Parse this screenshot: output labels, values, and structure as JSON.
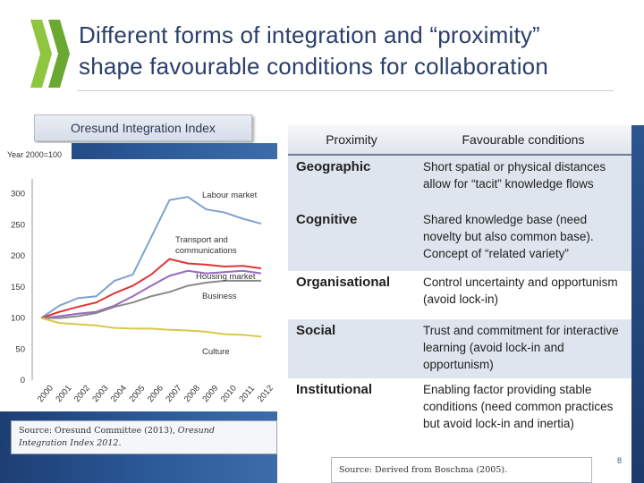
{
  "slide": {
    "title_line1": "Different forms of integration and “proximity”",
    "title_line2": "shape favourable conditions for collaboration",
    "index_label": "Oresund Integration Index",
    "slide_number": "8",
    "source_chart_line1": "Source: Oresund Committee (2013), ",
    "source_chart_italic1": "Oresund",
    "source_chart_italic2": "Integration Index 2012",
    "source_chart_end": ".",
    "source_table": "Source: Derived from Boschma (2005).",
    "colors": {
      "title": "#2a3f6a",
      "panel": "#1d3e73",
      "logo": "#8ec63f"
    }
  },
  "table": {
    "headers": [
      "Proximity",
      "Favourable conditions"
    ],
    "rows": [
      {
        "category": "Geographic",
        "condition": "Short spatial or physical distances  allow for “tacit” knowledge flows"
      },
      {
        "category": "Cognitive",
        "condition": "Shared knowledge base (need novelty but also common base). Concept of “related variety”"
      },
      {
        "category": "Organisational",
        "condition": "Control uncertainty and opportunism (avoid lock-in)"
      },
      {
        "category": "Social",
        "condition": "Trust and commitment for interactive learning (avoid lock-in and opportunism)"
      },
      {
        "category": "Institutional",
        "condition": "Enabling factor providing stable conditions (need common practices  but avoid lock-in and inertia)"
      }
    ]
  },
  "chart_data": {
    "type": "line",
    "title": "Oresund Integration Index",
    "subtitle": "Year 2000=100",
    "x": [
      "2000",
      "2001",
      "2002",
      "2003",
      "2004",
      "2005",
      "2006",
      "2007",
      "2008",
      "2009",
      "2010",
      "2011",
      "2012"
    ],
    "ylim": [
      0,
      350
    ],
    "yticks": [
      0,
      50,
      100,
      150,
      200,
      250,
      300
    ],
    "grid": false,
    "series": [
      {
        "name": "Labour market",
        "color": "#7fa3cf",
        "values": [
          100,
          120,
          132,
          135,
          160,
          170,
          230,
          290,
          295,
          275,
          270,
          260,
          252
        ]
      },
      {
        "name": "Transport and communications",
        "color": "#e03535",
        "values": [
          100,
          110,
          118,
          125,
          140,
          152,
          170,
          195,
          188,
          186,
          183,
          184,
          180
        ]
      },
      {
        "name": "Housing market",
        "color": "#9a6ac0",
        "values": [
          100,
          103,
          107,
          110,
          120,
          135,
          152,
          168,
          176,
          172,
          174,
          176,
          172
        ]
      },
      {
        "name": "Business",
        "color": "#8a8a8a",
        "values": [
          100,
          100,
          103,
          108,
          118,
          125,
          135,
          142,
          152,
          157,
          160,
          160,
          160
        ]
      },
      {
        "name": "Culture",
        "color": "#d8c84a",
        "values": [
          100,
          92,
          90,
          88,
          84,
          83,
          83,
          81,
          80,
          78,
          74,
          73,
          70
        ]
      }
    ]
  }
}
